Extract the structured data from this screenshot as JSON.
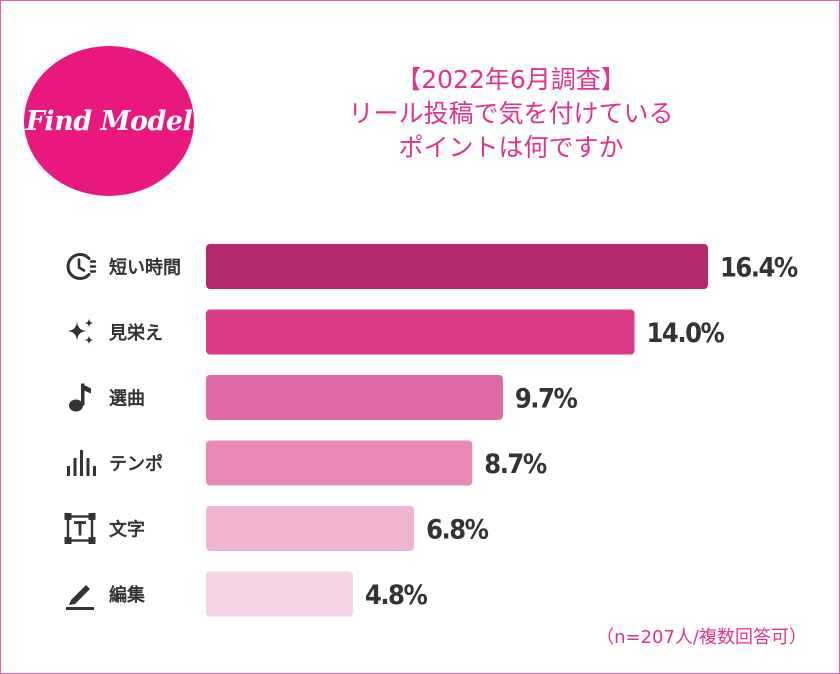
{
  "logo": {
    "text": "Find Model",
    "color": "#e8187f"
  },
  "title": {
    "line1": "【2022年6月調査】",
    "line2": "リール投稿で気を付けている",
    "line3": "ポイントは何ですか",
    "color": "#e0338f"
  },
  "note": "（n=207人/複数回答可）",
  "chart_data": {
    "type": "bar",
    "orientation": "horizontal",
    "categories": [
      "短い時間",
      "見栄え",
      "選曲",
      "テンポ",
      "文字",
      "編集"
    ],
    "icons": [
      "clock-icon",
      "sparkle-icon",
      "music-note-icon",
      "equalizer-bars-icon",
      "text-frame-icon",
      "pen-icon"
    ],
    "values": [
      16.4,
      14.0,
      9.7,
      8.7,
      6.8,
      4.8
    ],
    "value_labels": [
      "16.4%",
      "14.0%",
      "9.7%",
      "8.7%",
      "6.8%",
      "4.8%"
    ],
    "colors": [
      "#b5296a",
      "#d93b84",
      "#e06aa5",
      "#e889b8",
      "#f1b5d3",
      "#f6d3e4"
    ],
    "unit": "%",
    "xlim": [
      0,
      16.4
    ],
    "grid": false
  }
}
